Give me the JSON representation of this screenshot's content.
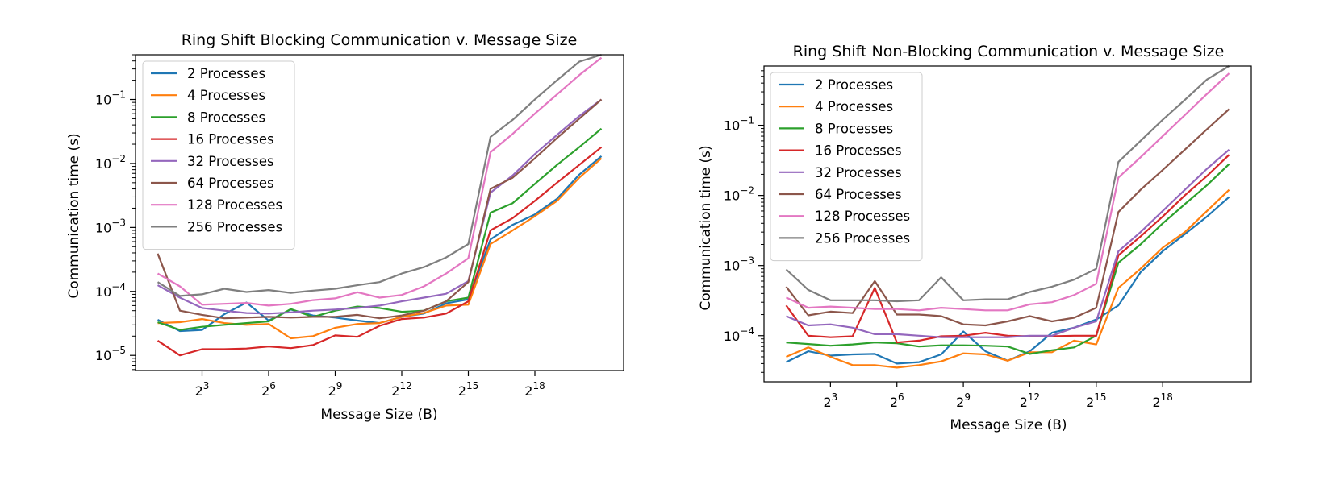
{
  "chart_data": [
    {
      "type": "line",
      "title": "Ring Shift Blocking Communication v. Message Size",
      "xlabel": "Message Size (B)",
      "ylabel": "Communication time (s)",
      "xscale": "log2",
      "yscale": "log10",
      "xlim": [
        1,
        4194304
      ],
      "ylim": [
        5.8e-06,
        0.5
      ],
      "xticks": [
        {
          "value": 8,
          "base": "2",
          "exp": "3"
        },
        {
          "value": 64,
          "base": "2",
          "exp": "6"
        },
        {
          "value": 512,
          "base": "2",
          "exp": "9"
        },
        {
          "value": 4096,
          "base": "2",
          "exp": "12"
        },
        {
          "value": 32768,
          "base": "2",
          "exp": "15"
        },
        {
          "value": 262144,
          "base": "2",
          "exp": "18"
        }
      ],
      "yticks": [
        {
          "value": 1e-05,
          "base": "10",
          "exp": "−5"
        },
        {
          "value": 0.0001,
          "base": "10",
          "exp": "−4"
        },
        {
          "value": 0.001,
          "base": "10",
          "exp": "−3"
        },
        {
          "value": 0.01,
          "base": "10",
          "exp": "−2"
        },
        {
          "value": 0.1,
          "base": "10",
          "exp": "−1"
        }
      ],
      "legend_position": "upper-left",
      "grid": false,
      "x": [
        2,
        4,
        8,
        16,
        32,
        64,
        128,
        256,
        512,
        1024,
        2048,
        4096,
        8192,
        16384,
        32768,
        65536,
        131072,
        262144,
        524288,
        1048576,
        2097152
      ],
      "series": [
        {
          "name": "2 Processes",
          "color": "#1f77b4",
          "values": [
            3.6e-05,
            2.4e-05,
            2.5e-05,
            4.4e-05,
            6.7e-05,
            3.5e-05,
            5.2e-05,
            4.2e-05,
            3.9e-05,
            3.5e-05,
            3.2e-05,
            4e-05,
            4.5e-05,
            6.5e-05,
            7.5e-05,
            0.00065,
            0.0011,
            0.0016,
            0.0028,
            0.0067,
            0.013
          ]
        },
        {
          "name": "4 Processes",
          "color": "#ff7f0e",
          "values": [
            3.2e-05,
            3.3e-05,
            3.7e-05,
            3.2e-05,
            3e-05,
            3.1e-05,
            1.85e-05,
            2e-05,
            2.7e-05,
            3.1e-05,
            3.2e-05,
            4e-05,
            4.6e-05,
            6e-05,
            6.2e-05,
            0.00055,
            0.0009,
            0.0015,
            0.0026,
            0.006,
            0.012
          ]
        },
        {
          "name": "8 Processes",
          "color": "#2ca02c",
          "values": [
            3.3e-05,
            2.5e-05,
            2.8e-05,
            3e-05,
            3.2e-05,
            3.4e-05,
            5.3e-05,
            4e-05,
            5e-05,
            5.8e-05,
            5.5e-05,
            4.8e-05,
            5e-05,
            7e-05,
            8e-05,
            0.0017,
            0.0024,
            0.0048,
            0.0095,
            0.018,
            0.035
          ]
        },
        {
          "name": "16 Processes",
          "color": "#d62728",
          "values": [
            1.7e-05,
            1e-05,
            1.25e-05,
            1.25e-05,
            1.28e-05,
            1.38e-05,
            1.3e-05,
            1.45e-05,
            2.05e-05,
            1.95e-05,
            2.9e-05,
            3.7e-05,
            3.9e-05,
            4.5e-05,
            7e-05,
            0.0009,
            0.0014,
            0.0026,
            0.005,
            0.0095,
            0.018
          ]
        },
        {
          "name": "32 Processes",
          "color": "#9467bd",
          "values": [
            0.000125,
            8e-05,
            5.5e-05,
            5e-05,
            4.6e-05,
            4.5e-05,
            4.7e-05,
            5e-05,
            5.2e-05,
            5.5e-05,
            6e-05,
            7e-05,
            8e-05,
            9.2e-05,
            0.000145,
            0.0035,
            0.0065,
            0.014,
            0.028,
            0.055,
            0.1
          ]
        },
        {
          "name": "64 Processes",
          "color": "#8c564b",
          "values": [
            0.00039,
            5e-05,
            4.3e-05,
            3.8e-05,
            3.9e-05,
            4e-05,
            3.9e-05,
            4e-05,
            4e-05,
            4.3e-05,
            3.8e-05,
            4.2e-05,
            5e-05,
            7e-05,
            0.00014,
            0.004,
            0.006,
            0.012,
            0.025,
            0.05,
            0.1
          ]
        },
        {
          "name": "128 Processes",
          "color": "#e377c2",
          "values": [
            0.00019,
            0.00012,
            6.2e-05,
            6.4e-05,
            6.6e-05,
            6e-05,
            6.4e-05,
            7.3e-05,
            7.8e-05,
            9.7e-05,
            8e-05,
            8.8e-05,
            0.00012,
            0.00019,
            0.00033,
            0.015,
            0.029,
            0.06,
            0.12,
            0.24,
            0.45
          ]
        },
        {
          "name": "256 Processes",
          "color": "#7f7f7f",
          "values": [
            0.00014,
            8.5e-05,
            9e-05,
            0.00011,
            9.8e-05,
            0.000105,
            9.5e-05,
            0.000103,
            0.00011,
            0.000125,
            0.00014,
            0.00019,
            0.00024,
            0.00034,
            0.00055,
            0.026,
            0.048,
            0.1,
            0.2,
            0.39,
            0.7
          ]
        }
      ]
    },
    {
      "type": "line",
      "title": "Ring Shift Non-Blocking Communication v. Message Size",
      "xlabel": "Message Size (B)",
      "ylabel": "Communication time (s)",
      "xscale": "log2",
      "yscale": "log10",
      "xlim": [
        1,
        4194304
      ],
      "ylim": [
        2.2e-05,
        0.7
      ],
      "xticks": [
        {
          "value": 8,
          "base": "2",
          "exp": "3"
        },
        {
          "value": 64,
          "base": "2",
          "exp": "6"
        },
        {
          "value": 512,
          "base": "2",
          "exp": "9"
        },
        {
          "value": 4096,
          "base": "2",
          "exp": "12"
        },
        {
          "value": 32768,
          "base": "2",
          "exp": "15"
        },
        {
          "value": 262144,
          "base": "2",
          "exp": "18"
        }
      ],
      "yticks": [
        {
          "value": 0.0001,
          "base": "10",
          "exp": "−4"
        },
        {
          "value": 0.001,
          "base": "10",
          "exp": "−3"
        },
        {
          "value": 0.01,
          "base": "10",
          "exp": "−2"
        },
        {
          "value": 0.1,
          "base": "10",
          "exp": "−1"
        }
      ],
      "legend_position": "upper-left",
      "grid": false,
      "x": [
        2,
        4,
        8,
        16,
        32,
        64,
        128,
        256,
        512,
        1024,
        2048,
        4096,
        8192,
        16384,
        32768,
        65536,
        131072,
        262144,
        524288,
        1048576,
        2097152
      ],
      "series": [
        {
          "name": "2 Processes",
          "color": "#1f77b4",
          "values": [
            4.2e-05,
            6e-05,
            5.2e-05,
            5.4e-05,
            5.5e-05,
            4e-05,
            4.2e-05,
            5.4e-05,
            0.000115,
            6e-05,
            4.4e-05,
            6e-05,
            0.00011,
            0.00013,
            0.00017,
            0.00027,
            0.0008,
            0.0016,
            0.0028,
            0.005,
            0.0095
          ]
        },
        {
          "name": "4 Processes",
          "color": "#ff7f0e",
          "values": [
            5e-05,
            6.8e-05,
            5e-05,
            3.8e-05,
            3.8e-05,
            3.5e-05,
            3.8e-05,
            4.3e-05,
            5.6e-05,
            5.4e-05,
            4.4e-05,
            5.8e-05,
            5.8e-05,
            8.5e-05,
            7.5e-05,
            0.00048,
            0.0009,
            0.0018,
            0.003,
            0.006,
            0.012
          ]
        },
        {
          "name": "8 Processes",
          "color": "#2ca02c",
          "values": [
            8e-05,
            7.6e-05,
            7.2e-05,
            7.5e-05,
            8e-05,
            7.8e-05,
            7e-05,
            7.3e-05,
            7.3e-05,
            7.2e-05,
            7e-05,
            5.5e-05,
            6.2e-05,
            6.8e-05,
            0.0001,
            0.0011,
            0.002,
            0.004,
            0.0075,
            0.014,
            0.028
          ]
        },
        {
          "name": "16 Processes",
          "color": "#d62728",
          "values": [
            0.00027,
            0.0001,
            9.5e-05,
            9.8e-05,
            0.00048,
            8e-05,
            8.5e-05,
            9.8e-05,
            0.0001,
            0.00011,
            0.0001,
            9.8e-05,
            9.8e-05,
            0.0001,
            0.0001,
            0.0014,
            0.0026,
            0.005,
            0.01,
            0.019,
            0.038
          ]
        },
        {
          "name": "32 Processes",
          "color": "#9467bd",
          "values": [
            0.00019,
            0.00014,
            0.000145,
            0.00013,
            0.000105,
            0.000105,
            0.0001,
            9.5e-05,
            9.5e-05,
            9.5e-05,
            9.5e-05,
            0.0001,
            0.0001,
            0.00013,
            0.00016,
            0.0016,
            0.003,
            0.006,
            0.012,
            0.024,
            0.045
          ]
        },
        {
          "name": "64 Processes",
          "color": "#8c564b",
          "values": [
            0.0005,
            0.000195,
            0.00022,
            0.00021,
            0.0006,
            0.0002,
            0.0002,
            0.00019,
            0.000145,
            0.00014,
            0.00016,
            0.00019,
            0.00016,
            0.00018,
            0.00025,
            0.0058,
            0.012,
            0.023,
            0.045,
            0.088,
            0.17
          ]
        },
        {
          "name": "128 Processes",
          "color": "#e377c2",
          "values": [
            0.00035,
            0.00025,
            0.00026,
            0.00025,
            0.00024,
            0.00024,
            0.00023,
            0.00025,
            0.00024,
            0.00023,
            0.00023,
            0.00028,
            0.0003,
            0.00038,
            0.00055,
            0.018,
            0.035,
            0.07,
            0.14,
            0.28,
            0.55
          ]
        },
        {
          "name": "256 Processes",
          "color": "#7f7f7f",
          "values": [
            0.00088,
            0.00045,
            0.00032,
            0.00032,
            0.00032,
            0.00031,
            0.00032,
            0.00068,
            0.00032,
            0.00033,
            0.00033,
            0.00042,
            0.0005,
            0.00063,
            0.0009,
            0.03,
            0.06,
            0.12,
            0.23,
            0.45,
            0.85
          ]
        }
      ]
    }
  ]
}
